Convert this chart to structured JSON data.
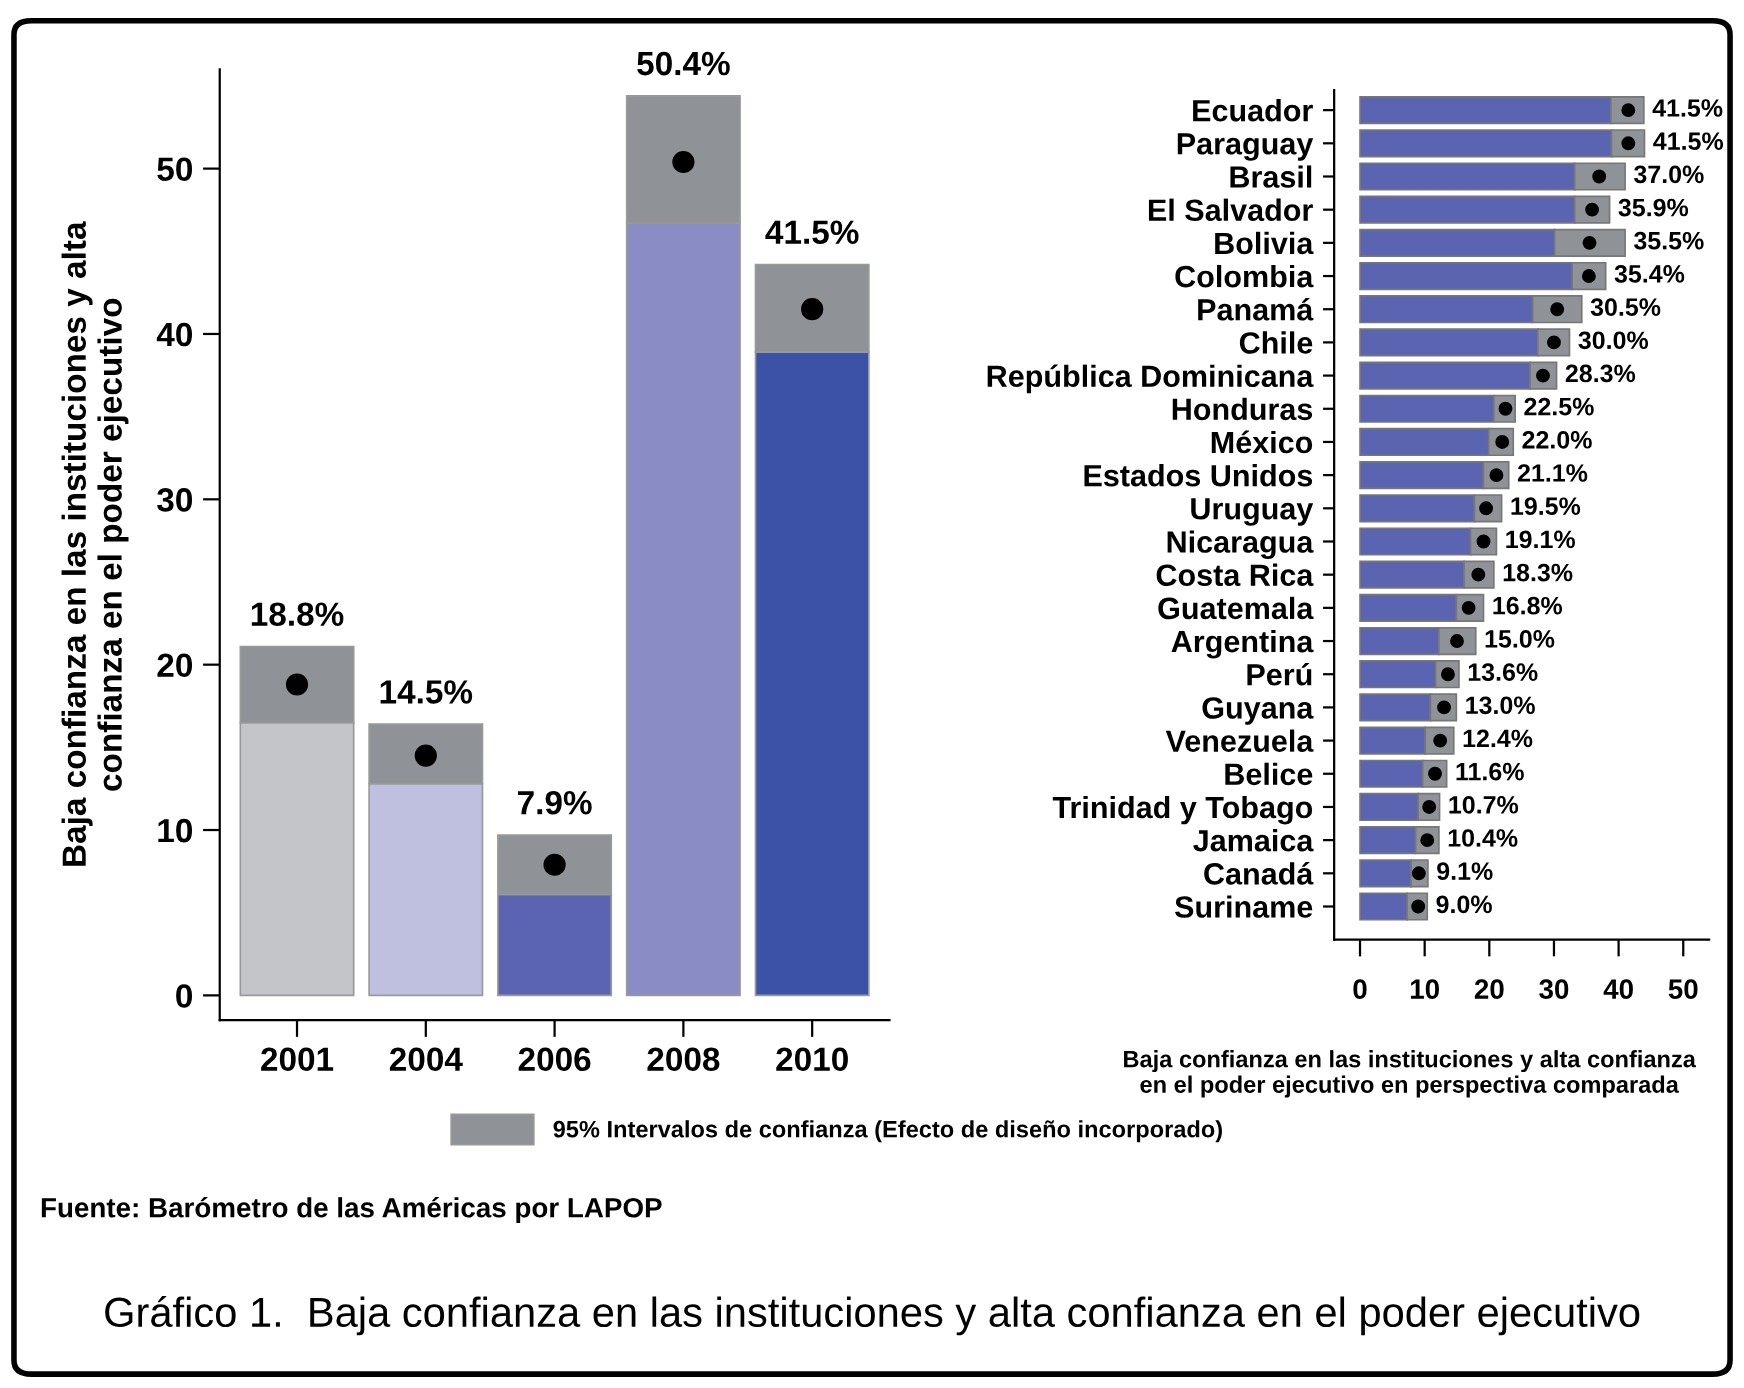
{
  "chart_data": [
    {
      "type": "bar",
      "stacked": true,
      "categories": [
        "2001",
        "2004",
        "2006",
        "2008",
        "2010"
      ],
      "ylabel": "Baja confianza en las instituciones y alta\nconfianza en el poder ejecutivo",
      "series": [
        {
          "colors": [
            "#c4c5c9",
            "#bfbfe0",
            "#5a64b0",
            "#8a8cc6",
            "#3b52a6"
          ],
          "values": [
            16.5,
            12.8,
            6.1,
            46.7,
            38.9
          ]
        },
        {
          "name": "95% Intervalos de confianza (Efecto de diseño incorporado)",
          "color": "#8f9296",
          "values": [
            4.6,
            3.6,
            3.6,
            7.7,
            5.3
          ]
        },
        {
          "type": "scatter",
          "color": "#000000",
          "marker": "circle",
          "values": [
            18.8,
            14.5,
            7.9,
            50.4,
            41.5
          ],
          "value_labels": [
            "18.8%",
            "14.5%",
            "7.9%",
            "50.4%",
            "41.5%"
          ]
        }
      ],
      "ylim": [
        -1.5,
        56
      ],
      "yticks": [
        0,
        10,
        20,
        30,
        40,
        50
      ],
      "grid": false,
      "legend": "bottom",
      "annotations": [
        "Fuente: Barómetro de las Américas por LAPOP",
        "Gráfico 1.  Baja confianza en las instituciones y alta confianza en el poder ejecutivo"
      ]
    },
    {
      "type": "bar",
      "stacked": true,
      "orientation": "horizontal",
      "categories": [
        "Ecuador",
        "Paraguay",
        "Brasil",
        "El Salvador",
        "Bolivia",
        "Colombia",
        "Panamá",
        "Chile",
        "República Dominicana",
        "Honduras",
        "México",
        "Estados Unidos",
        "Uruguay",
        "Nicaragua",
        "Costa Rica",
        "Guatemala",
        "Argentina",
        "Perú",
        "Guyana",
        "Venezuela",
        "Belice",
        "Trinidad y Tobago",
        "Jamaica",
        "Canadá",
        "Suriname"
      ],
      "series": [
        {
          "color": "#5a64b0",
          "values": [
            38.8,
            38.9,
            33.2,
            33.2,
            30.1,
            32.8,
            26.7,
            27.5,
            26.3,
            20.7,
            19.9,
            19.1,
            17.7,
            17.1,
            16.1,
            14.9,
            12.2,
            11.7,
            10.9,
            10.1,
            9.7,
            9.0,
            8.6,
            7.9,
            7.3
          ]
        },
        {
          "color": "#8f9296",
          "values": [
            5.1,
            5.1,
            7.8,
            5.4,
            10.9,
            5.2,
            7.6,
            4.9,
            4.1,
            3.3,
            3.8,
            3.9,
            4.2,
            4.0,
            4.6,
            4.2,
            5.7,
            3.6,
            4.0,
            4.4,
            3.7,
            3.3,
            3.6,
            2.6,
            3.1
          ]
        },
        {
          "type": "scatter",
          "color": "#000000",
          "marker": "circle",
          "values": [
            41.5,
            41.5,
            37.0,
            35.9,
            35.5,
            35.4,
            30.5,
            30.0,
            28.3,
            22.5,
            22.0,
            21.1,
            19.5,
            19.1,
            18.3,
            16.8,
            15.0,
            13.6,
            13.0,
            12.4,
            11.6,
            10.7,
            10.4,
            9.1,
            9.0
          ],
          "value_labels": [
            "41.5%",
            "41.5%",
            "37.0%",
            "35.9%",
            "35.5%",
            "35.4%",
            "30.5%",
            "30.0%",
            "28.3%",
            "22.5%",
            "22.0%",
            "21.1%",
            "19.5%",
            "19.1%",
            "18.3%",
            "16.8%",
            "15.0%",
            "13.6%",
            "13.0%",
            "12.4%",
            "11.6%",
            "10.7%",
            "10.4%",
            "9.1%",
            "9.0%"
          ]
        }
      ],
      "xlim": [
        -4,
        54
      ],
      "xticks": [
        0,
        10,
        20,
        30,
        40,
        50
      ],
      "grid": false,
      "xlabel": "Baja confianza en las instituciones y alta confianza\nen el poder ejecutivo en perspectiva comparada"
    }
  ]
}
